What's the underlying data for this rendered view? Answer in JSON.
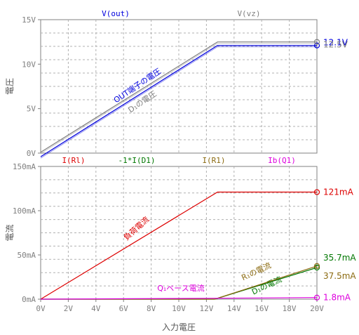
{
  "chart_data": [
    {
      "type": "line",
      "ylabel": "電圧",
      "ylim": [
        0,
        15
      ],
      "yticks": [
        "0V",
        "5V",
        "10V",
        "15V"
      ],
      "ytick_values": [
        0,
        5,
        10,
        15
      ],
      "xlim": [
        0,
        20
      ],
      "grid": true,
      "legend": "top",
      "series": [
        {
          "name": "V(out)",
          "color": "#0000dd",
          "x": [
            0,
            12.8,
            20
          ],
          "y": [
            -0.4,
            12.1,
            12.1
          ],
          "end_label": "12.1V",
          "annotation": "OUT端子の電圧"
        },
        {
          "name": "V(vz)",
          "color": "#808080",
          "x": [
            0,
            12.8,
            20
          ],
          "y": [
            0.1,
            12.5,
            12.5
          ],
          "end_label": "12.5V",
          "annotation": "D₁の電圧"
        }
      ]
    },
    {
      "type": "line",
      "xlabel": "入力電圧",
      "ylabel": "電流",
      "ylim": [
        0,
        120
      ],
      "yticks": [
        "0mA",
        "50mA",
        "100mA",
        "150mA"
      ],
      "ytick_values": [
        0,
        50,
        100,
        150
      ],
      "xlim": [
        0,
        20
      ],
      "xticks": [
        "0V",
        "2V",
        "4V",
        "6V",
        "8V",
        "10V",
        "12V",
        "14V",
        "16V",
        "18V",
        "20V"
      ],
      "xtick_values": [
        0,
        2,
        4,
        6,
        8,
        10,
        12,
        14,
        16,
        18,
        20
      ],
      "grid": true,
      "legend": "top",
      "series": [
        {
          "name": "I(Rl)",
          "color": "#dd0000",
          "x": [
            0,
            12.8,
            20
          ],
          "y": [
            0,
            121,
            121
          ],
          "end_label": "121mA",
          "annotation": "負荷電流"
        },
        {
          "name": "-1*I(D1)",
          "color": "#007700",
          "x": [
            0,
            12.6,
            20
          ],
          "y": [
            0,
            0,
            35.7
          ],
          "end_label": "35.7mA",
          "annotation": "D₁の電流"
        },
        {
          "name": "I(R1)",
          "color": "#8b6a10",
          "x": [
            0,
            12.6,
            20
          ],
          "y": [
            0,
            0,
            37.5
          ],
          "end_label": "37.5mA",
          "annotation": "R₁の電流"
        },
        {
          "name": "Ib(Q1)",
          "color": "#dd00dd",
          "x": [
            0,
            12.6,
            20
          ],
          "y": [
            0,
            1.0,
            1.8
          ],
          "end_label": "1.8mA",
          "annotation": "Q₁ベース電流"
        }
      ]
    }
  ]
}
